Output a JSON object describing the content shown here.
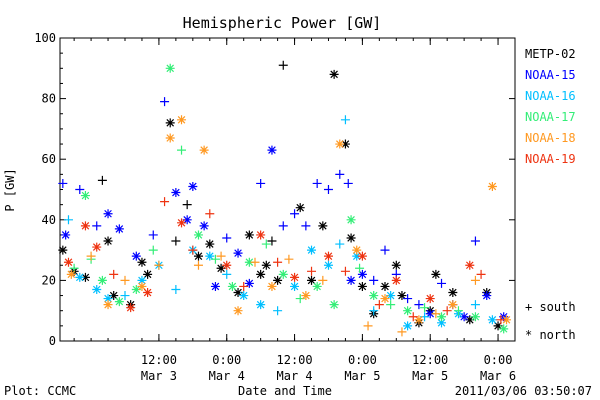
{
  "chart_data": {
    "type": "scatter",
    "title": "Hemispheric Power [GW]",
    "ylabel": "P [GW]",
    "xlabel": "Date and Time",
    "ylim": [
      0,
      100
    ],
    "yticks": [
      0,
      20,
      40,
      60,
      80,
      100
    ],
    "xlim": [
      "2011-03-02 18:30",
      "2011-03-06 03:00"
    ],
    "xticks": [
      {
        "time": "2011-03-03 12:00",
        "line1": "12:00",
        "line2": "Mar 3"
      },
      {
        "time": "2011-03-04 00:00",
        "line1": "0:00",
        "line2": "Mar 4"
      },
      {
        "time": "2011-03-04 12:00",
        "line1": "12:00",
        "line2": "Mar 4"
      },
      {
        "time": "2011-03-05 00:00",
        "line1": "0:00",
        "line2": "Mar 5"
      },
      {
        "time": "2011-03-05 12:00",
        "line1": "12:00",
        "line2": "Mar 5"
      },
      {
        "time": "2011-03-06 00:00",
        "line1": "0:00",
        "line2": "Mar 6"
      }
    ],
    "grid": false,
    "legend_position": "right",
    "markers": {
      "south": "+",
      "north": "*"
    },
    "marker_legend": [
      {
        "symbol": "+",
        "label": "south"
      },
      {
        "symbol": "*",
        "label": "north"
      }
    ],
    "series": [
      {
        "name": "METP-02",
        "color": "#000000",
        "points": [
          [
            "2011-03-02 19:00",
            30,
            "N"
          ],
          [
            "2011-03-02 21:00",
            23,
            "N"
          ],
          [
            "2011-03-02 23:00",
            21,
            "N"
          ],
          [
            "2011-03-03 02:00",
            53,
            "S"
          ],
          [
            "2011-03-03 03:00",
            33,
            "N"
          ],
          [
            "2011-03-03 04:00",
            15,
            "N"
          ],
          [
            "2011-03-03 07:00",
            12,
            "N"
          ],
          [
            "2011-03-03 09:00",
            26,
            "N"
          ],
          [
            "2011-03-03 10:00",
            22,
            "N"
          ],
          [
            "2011-03-03 14:00",
            72,
            "N"
          ],
          [
            "2011-03-03 15:00",
            33,
            "S"
          ],
          [
            "2011-03-03 17:00",
            45,
            "S"
          ],
          [
            "2011-03-03 19:00",
            28,
            "N"
          ],
          [
            "2011-03-03 21:00",
            32,
            "N"
          ],
          [
            "2011-03-03 23:00",
            24,
            "N"
          ],
          [
            "2011-03-04 02:00",
            16,
            "N"
          ],
          [
            "2011-03-04 04:00",
            35,
            "N"
          ],
          [
            "2011-03-04 06:00",
            22,
            "N"
          ],
          [
            "2011-03-04 07:00",
            25,
            "N"
          ],
          [
            "2011-03-04 08:00",
            33,
            "S"
          ],
          [
            "2011-03-04 09:00",
            20,
            "N"
          ],
          [
            "2011-03-04 10:00",
            91,
            "S"
          ],
          [
            "2011-03-04 13:00",
            44,
            "N"
          ],
          [
            "2011-03-04 15:00",
            20,
            "N"
          ],
          [
            "2011-03-04 17:00",
            38,
            "N"
          ],
          [
            "2011-03-04 19:00",
            88,
            "N"
          ],
          [
            "2011-03-04 21:00",
            65,
            "N"
          ],
          [
            "2011-03-04 22:00",
            34,
            "N"
          ],
          [
            "2011-03-05 00:00",
            18,
            "N"
          ],
          [
            "2011-03-05 02:00",
            9,
            "N"
          ],
          [
            "2011-03-05 04:00",
            18,
            "N"
          ],
          [
            "2011-03-05 06:00",
            25,
            "N"
          ],
          [
            "2011-03-05 07:00",
            15,
            "N"
          ],
          [
            "2011-03-05 10:00",
            6,
            "N"
          ],
          [
            "2011-03-05 12:00",
            10,
            "N"
          ],
          [
            "2011-03-05 13:00",
            22,
            "N"
          ],
          [
            "2011-03-05 16:00",
            16,
            "N"
          ],
          [
            "2011-03-05 19:00",
            7,
            "N"
          ],
          [
            "2011-03-05 22:00",
            16,
            "N"
          ],
          [
            "2011-03-06 00:00",
            5,
            "N"
          ]
        ]
      },
      {
        "name": "NOAA-15",
        "color": "#0000ff",
        "points": [
          [
            "2011-03-02 19:00",
            52,
            "S"
          ],
          [
            "2011-03-02 19:30",
            35,
            "N"
          ],
          [
            "2011-03-02 22:00",
            50,
            "S"
          ],
          [
            "2011-03-03 01:00",
            38,
            "S"
          ],
          [
            "2011-03-03 03:00",
            42,
            "N"
          ],
          [
            "2011-03-03 05:00",
            37,
            "N"
          ],
          [
            "2011-03-03 08:00",
            28,
            "N"
          ],
          [
            "2011-03-03 11:00",
            35,
            "S"
          ],
          [
            "2011-03-03 13:00",
            79,
            "S"
          ],
          [
            "2011-03-03 15:00",
            49,
            "N"
          ],
          [
            "2011-03-03 17:00",
            40,
            "N"
          ],
          [
            "2011-03-03 18:00",
            51,
            "N"
          ],
          [
            "2011-03-03 20:00",
            38,
            "N"
          ],
          [
            "2011-03-03 22:00",
            18,
            "N"
          ],
          [
            "2011-03-04 00:00",
            34,
            "S"
          ],
          [
            "2011-03-04 02:00",
            29,
            "N"
          ],
          [
            "2011-03-04 04:00",
            19,
            "N"
          ],
          [
            "2011-03-04 06:00",
            52,
            "S"
          ],
          [
            "2011-03-04 08:00",
            63,
            "N"
          ],
          [
            "2011-03-04 10:00",
            38,
            "S"
          ],
          [
            "2011-03-04 12:00",
            42,
            "S"
          ],
          [
            "2011-03-04 14:00",
            38,
            "S"
          ],
          [
            "2011-03-04 16:00",
            52,
            "S"
          ],
          [
            "2011-03-04 18:00",
            50,
            "S"
          ],
          [
            "2011-03-04 20:00",
            55,
            "S"
          ],
          [
            "2011-03-04 21:30",
            52,
            "S"
          ],
          [
            "2011-03-04 22:00",
            20,
            "N"
          ],
          [
            "2011-03-05 00:00",
            22,
            "N"
          ],
          [
            "2011-03-05 02:00",
            20,
            "S"
          ],
          [
            "2011-03-05 04:00",
            30,
            "S"
          ],
          [
            "2011-03-05 06:00",
            22,
            "S"
          ],
          [
            "2011-03-05 08:00",
            14,
            "S"
          ],
          [
            "2011-03-05 10:00",
            12,
            "S"
          ],
          [
            "2011-03-05 12:00",
            9,
            "N"
          ],
          [
            "2011-03-05 14:00",
            19,
            "S"
          ],
          [
            "2011-03-05 16:00",
            12,
            "S"
          ],
          [
            "2011-03-05 18:00",
            8,
            "N"
          ],
          [
            "2011-03-05 20:00",
            33,
            "S"
          ],
          [
            "2011-03-05 22:00",
            15,
            "N"
          ],
          [
            "2011-03-06 01:00",
            8,
            "N"
          ]
        ]
      },
      {
        "name": "NOAA-16",
        "color": "#00bfff",
        "points": [
          [
            "2011-03-02 20:00",
            40,
            "S"
          ],
          [
            "2011-03-02 22:00",
            21,
            "N"
          ],
          [
            "2011-03-03 01:00",
            17,
            "N"
          ],
          [
            "2011-03-03 03:00",
            14,
            "N"
          ],
          [
            "2011-03-03 06:00",
            15,
            "S"
          ],
          [
            "2011-03-03 09:00",
            20,
            "N"
          ],
          [
            "2011-03-03 12:00",
            25,
            "N"
          ],
          [
            "2011-03-03 15:00",
            17,
            "S"
          ],
          [
            "2011-03-03 18:00",
            30,
            "N"
          ],
          [
            "2011-03-03 21:00",
            28,
            "N"
          ],
          [
            "2011-03-04 00:00",
            22,
            "S"
          ],
          [
            "2011-03-04 03:00",
            15,
            "N"
          ],
          [
            "2011-03-04 06:00",
            12,
            "N"
          ],
          [
            "2011-03-04 09:00",
            10,
            "S"
          ],
          [
            "2011-03-04 12:00",
            18,
            "N"
          ],
          [
            "2011-03-04 15:00",
            30,
            "N"
          ],
          [
            "2011-03-04 18:00",
            25,
            "N"
          ],
          [
            "2011-03-04 20:00",
            32,
            "S"
          ],
          [
            "2011-03-04 21:00",
            73,
            "S"
          ],
          [
            "2011-03-04 23:00",
            28,
            "N"
          ],
          [
            "2011-03-05 02:00",
            10,
            "S"
          ],
          [
            "2011-03-05 05:00",
            15,
            "N"
          ],
          [
            "2011-03-05 08:00",
            5,
            "N"
          ],
          [
            "2011-03-05 11:00",
            8,
            "S"
          ],
          [
            "2011-03-05 14:00",
            6,
            "N"
          ],
          [
            "2011-03-05 17:00",
            9,
            "N"
          ],
          [
            "2011-03-05 20:00",
            12,
            "S"
          ],
          [
            "2011-03-05 23:00",
            7,
            "N"
          ]
        ]
      },
      {
        "name": "NOAA-17",
        "color": "#33ee77",
        "points": [
          [
            "2011-03-02 21:00",
            24,
            "S"
          ],
          [
            "2011-03-02 23:00",
            48,
            "N"
          ],
          [
            "2011-03-03 00:00",
            27,
            "S"
          ],
          [
            "2011-03-03 02:00",
            20,
            "N"
          ],
          [
            "2011-03-03 05:00",
            13,
            "N"
          ],
          [
            "2011-03-03 08:00",
            17,
            "N"
          ],
          [
            "2011-03-03 11:00",
            30,
            "S"
          ],
          [
            "2011-03-03 14:00",
            90,
            "N"
          ],
          [
            "2011-03-03 16:00",
            63,
            "S"
          ],
          [
            "2011-03-03 19:00",
            35,
            "N"
          ],
          [
            "2011-03-03 22:00",
            27,
            "S"
          ],
          [
            "2011-03-04 01:00",
            18,
            "N"
          ],
          [
            "2011-03-04 04:00",
            26,
            "N"
          ],
          [
            "2011-03-04 07:00",
            32,
            "S"
          ],
          [
            "2011-03-04 10:00",
            22,
            "N"
          ],
          [
            "2011-03-04 13:00",
            14,
            "S"
          ],
          [
            "2011-03-04 16:00",
            18,
            "N"
          ],
          [
            "2011-03-04 19:00",
            12,
            "N"
          ],
          [
            "2011-03-04 22:00",
            40,
            "N"
          ],
          [
            "2011-03-04 23:30",
            24,
            "S"
          ],
          [
            "2011-03-05 02:00",
            15,
            "N"
          ],
          [
            "2011-03-05 05:00",
            12,
            "S"
          ],
          [
            "2011-03-05 08:00",
            10,
            "N"
          ],
          [
            "2011-03-05 11:00",
            11,
            "S"
          ],
          [
            "2011-03-05 14:00",
            8,
            "N"
          ],
          [
            "2011-03-05 17:00",
            10,
            "S"
          ],
          [
            "2011-03-05 20:00",
            8,
            "N"
          ],
          [
            "2011-03-06 01:00",
            4,
            "N"
          ]
        ]
      },
      {
        "name": "NOAA-18",
        "color": "#ff9922",
        "points": [
          [
            "2011-03-02 20:30",
            22,
            "N"
          ],
          [
            "2011-03-03 00:00",
            28,
            "S"
          ],
          [
            "2011-03-03 03:00",
            12,
            "N"
          ],
          [
            "2011-03-03 06:00",
            20,
            "S"
          ],
          [
            "2011-03-03 09:00",
            18,
            "N"
          ],
          [
            "2011-03-03 12:00",
            25,
            "S"
          ],
          [
            "2011-03-03 14:00",
            67,
            "N"
          ],
          [
            "2011-03-03 16:00",
            73,
            "N"
          ],
          [
            "2011-03-03 19:00",
            25,
            "S"
          ],
          [
            "2011-03-03 20:00",
            63,
            "N"
          ],
          [
            "2011-03-03 23:00",
            28,
            "S"
          ],
          [
            "2011-03-04 02:00",
            10,
            "N"
          ],
          [
            "2011-03-04 05:00",
            26,
            "S"
          ],
          [
            "2011-03-04 08:00",
            18,
            "N"
          ],
          [
            "2011-03-04 11:00",
            27,
            "S"
          ],
          [
            "2011-03-04 14:00",
            15,
            "N"
          ],
          [
            "2011-03-04 17:00",
            20,
            "S"
          ],
          [
            "2011-03-04 20:00",
            65,
            "N"
          ],
          [
            "2011-03-04 23:00",
            30,
            "N"
          ],
          [
            "2011-03-05 01:00",
            5,
            "S"
          ],
          [
            "2011-03-05 04:00",
            14,
            "N"
          ],
          [
            "2011-03-05 07:00",
            3,
            "S"
          ],
          [
            "2011-03-05 10:00",
            7,
            "N"
          ],
          [
            "2011-03-05 13:00",
            9,
            "S"
          ],
          [
            "2011-03-05 16:00",
            12,
            "N"
          ],
          [
            "2011-03-05 20:00",
            20,
            "S"
          ],
          [
            "2011-03-05 23:00",
            51,
            "N"
          ],
          [
            "2011-03-06 01:30",
            7,
            "N"
          ]
        ]
      },
      {
        "name": "NOAA-19",
        "color": "#ee3311",
        "points": [
          [
            "2011-03-02 20:00",
            26,
            "N"
          ],
          [
            "2011-03-02 23:00",
            38,
            "N"
          ],
          [
            "2011-03-03 01:00",
            31,
            "N"
          ],
          [
            "2011-03-03 04:00",
            22,
            "S"
          ],
          [
            "2011-03-03 07:00",
            11,
            "N"
          ],
          [
            "2011-03-03 10:00",
            16,
            "N"
          ],
          [
            "2011-03-03 13:00",
            46,
            "S"
          ],
          [
            "2011-03-03 16:00",
            39,
            "N"
          ],
          [
            "2011-03-03 18:00",
            30,
            "S"
          ],
          [
            "2011-03-03 21:00",
            42,
            "S"
          ],
          [
            "2011-03-04 00:00",
            25,
            "N"
          ],
          [
            "2011-03-04 03:00",
            18,
            "S"
          ],
          [
            "2011-03-04 06:00",
            35,
            "N"
          ],
          [
            "2011-03-04 09:00",
            26,
            "S"
          ],
          [
            "2011-03-04 12:00",
            21,
            "N"
          ],
          [
            "2011-03-04 15:00",
            23,
            "S"
          ],
          [
            "2011-03-04 18:00",
            28,
            "N"
          ],
          [
            "2011-03-04 21:00",
            23,
            "S"
          ],
          [
            "2011-03-05 00:00",
            28,
            "N"
          ],
          [
            "2011-03-05 03:00",
            12,
            "S"
          ],
          [
            "2011-03-05 06:00",
            20,
            "N"
          ],
          [
            "2011-03-05 09:00",
            8,
            "S"
          ],
          [
            "2011-03-05 12:00",
            14,
            "N"
          ],
          [
            "2011-03-05 15:00",
            10,
            "S"
          ],
          [
            "2011-03-05 19:00",
            25,
            "N"
          ],
          [
            "2011-03-05 21:00",
            22,
            "S"
          ],
          [
            "2011-03-06 00:30",
            7,
            "S"
          ]
        ]
      }
    ]
  },
  "footer": {
    "left": "Plot: CCMC",
    "right": "2011/03/06 03:50:07"
  }
}
